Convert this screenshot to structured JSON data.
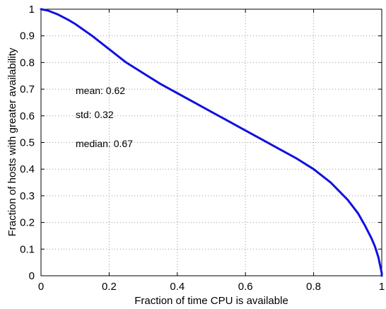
{
  "chart_data": {
    "type": "line",
    "xlabel": "Fraction of time CPU is available",
    "ylabel": "Fraction of hosts with greater availability",
    "xlim": [
      0,
      1
    ],
    "ylim": [
      0,
      1
    ],
    "xticks": [
      "0",
      "0.2",
      "0.4",
      "0.6",
      "0.8",
      "1"
    ],
    "yticks": [
      "0",
      "0.1",
      "0.2",
      "0.3",
      "0.4",
      "0.5",
      "0.6",
      "0.7",
      "0.8",
      "0.9",
      "1"
    ],
    "grid": true,
    "line_color": "#1010e0",
    "annotations": [
      "mean: 0.62",
      "std: 0.32",
      "median: 0.67"
    ],
    "series": [
      {
        "x": [
          0,
          0.02,
          0.05,
          0.08,
          0.1,
          0.15,
          0.2,
          0.25,
          0.3,
          0.35,
          0.4,
          0.45,
          0.5,
          0.55,
          0.6,
          0.65,
          0.7,
          0.75,
          0.8,
          0.85,
          0.9,
          0.93,
          0.95,
          0.97,
          0.98,
          0.99,
          0.995,
          1.0,
          1.0
        ],
        "y": [
          1.0,
          0.995,
          0.98,
          0.96,
          0.945,
          0.9,
          0.85,
          0.8,
          0.76,
          0.72,
          0.685,
          0.65,
          0.615,
          0.58,
          0.545,
          0.51,
          0.475,
          0.44,
          0.4,
          0.35,
          0.285,
          0.235,
          0.19,
          0.14,
          0.11,
          0.07,
          0.04,
          0.01,
          0.0
        ]
      }
    ]
  }
}
